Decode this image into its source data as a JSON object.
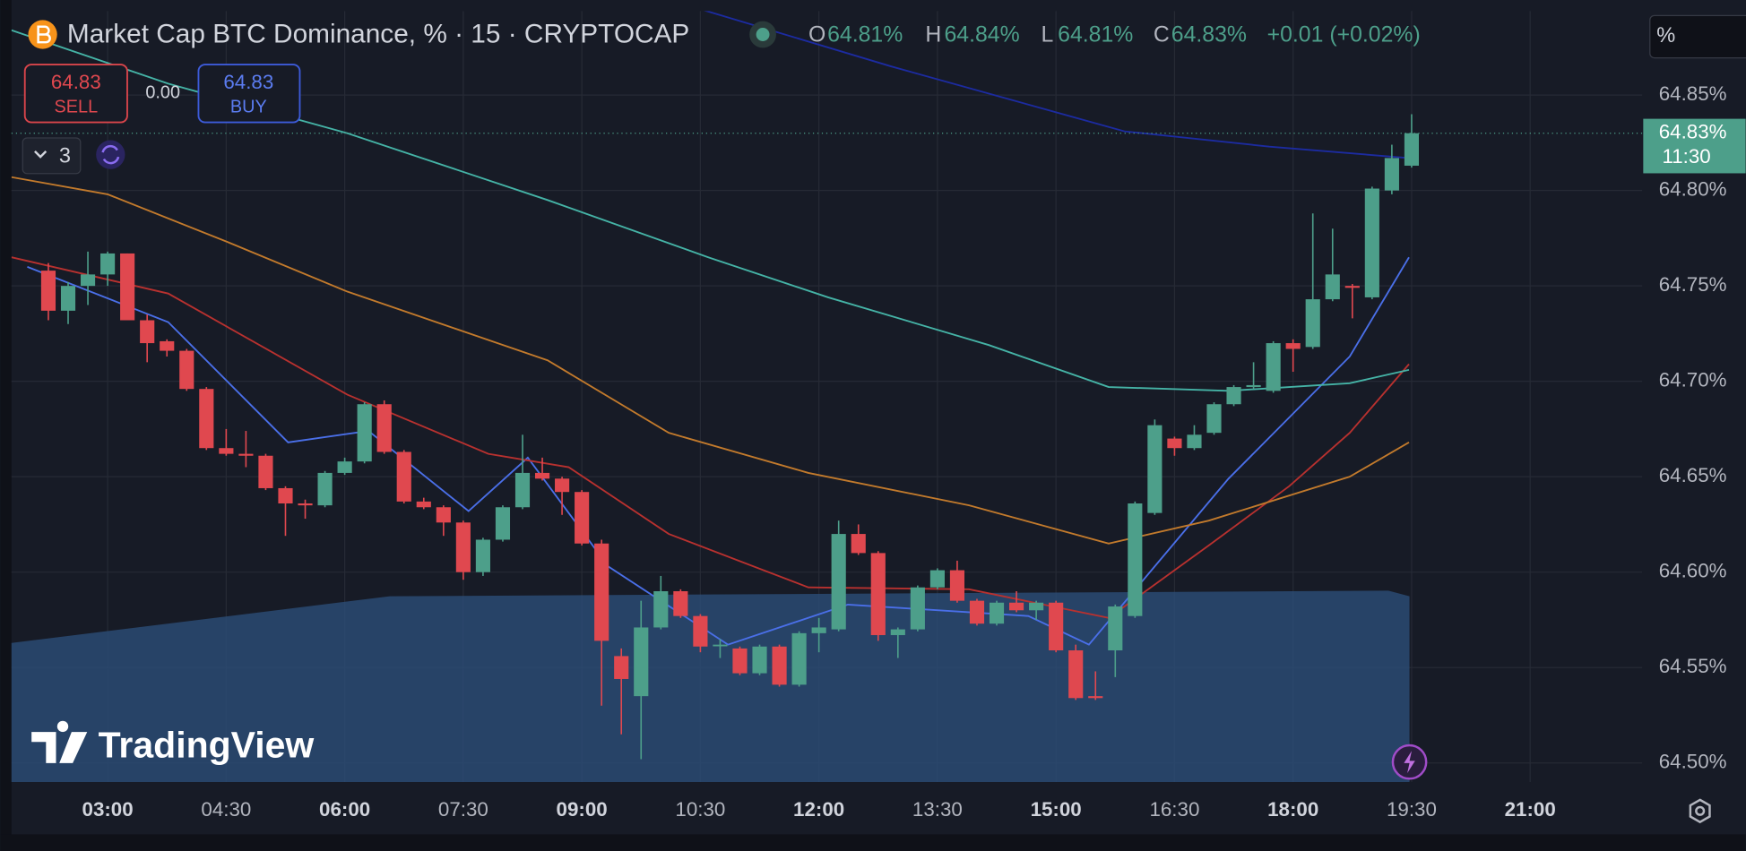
{
  "chart_data": {
    "type": "candlestick",
    "title": "Market Cap BTC Dominance, % · 15 · CRYPTOCAP",
    "ohlc_legend": {
      "o_label": "O",
      "o": "64.81%",
      "h_label": "H",
      "h": "64.84%",
      "l_label": "L",
      "l": "64.81%",
      "c_label": "C",
      "c": "64.83%",
      "change": "+0.01 (+0.02%)"
    },
    "up_color": "#4d9f8a",
    "down_color": "#e0484f",
    "xlim": [
      107,
      1345
    ],
    "ylim": [
      64.49,
      64.894
    ],
    "xticks": [
      {
        "value": 180,
        "label": "03:00",
        "major": true
      },
      {
        "value": 270,
        "label": "04:30",
        "major": false
      },
      {
        "value": 360,
        "label": "06:00",
        "major": true
      },
      {
        "value": 450,
        "label": "07:30",
        "major": false
      },
      {
        "value": 540,
        "label": "09:00",
        "major": true
      },
      {
        "value": 630,
        "label": "10:30",
        "major": false
      },
      {
        "value": 720,
        "label": "12:00",
        "major": true
      },
      {
        "value": 810,
        "label": "13:30",
        "major": false
      },
      {
        "value": 900,
        "label": "15:00",
        "major": true
      },
      {
        "value": 990,
        "label": "16:30",
        "major": false
      },
      {
        "value": 1080,
        "label": "18:00",
        "major": true
      },
      {
        "value": 1170,
        "label": "19:30",
        "major": false
      },
      {
        "value": 1260,
        "label": "21:00",
        "major": true
      }
    ],
    "yticks": [
      {
        "value": 64.5,
        "label": "64.50%"
      },
      {
        "value": 64.55,
        "label": "64.55%"
      },
      {
        "value": 64.6,
        "label": "64.60%"
      },
      {
        "value": 64.65,
        "label": "64.65%"
      },
      {
        "value": 64.7,
        "label": "64.70%"
      },
      {
        "value": 64.75,
        "label": "64.75%"
      },
      {
        "value": 64.8,
        "label": "64.80%"
      },
      {
        "value": 64.85,
        "label": "64.85%"
      }
    ],
    "grid": true,
    "x": [
      135,
      150,
      165,
      180,
      195,
      210,
      225,
      240,
      255,
      270,
      285,
      300,
      315,
      330,
      345,
      360,
      375,
      390,
      405,
      420,
      435,
      450,
      465,
      480,
      495,
      510,
      525,
      540,
      555,
      570,
      585,
      600,
      615,
      630,
      645,
      660,
      675,
      690,
      705,
      720,
      735,
      750,
      765,
      780,
      795,
      810,
      825,
      840,
      855,
      870,
      885,
      900,
      915,
      930,
      945,
      960,
      975,
      990,
      1005,
      1020,
      1035,
      1050,
      1065,
      1080,
      1095,
      1110,
      1125,
      1140,
      1155,
      1170
    ],
    "open": [
      64.758,
      64.737,
      64.75,
      64.756,
      64.767,
      64.732,
      64.721,
      64.716,
      64.696,
      64.665,
      64.662,
      64.661,
      64.644,
      64.636,
      64.635,
      64.652,
      64.658,
      64.688,
      64.663,
      64.637,
      64.634,
      64.626,
      64.6,
      64.617,
      64.634,
      64.652,
      64.649,
      64.642,
      64.615,
      64.556,
      64.535,
      64.571,
      64.59,
      64.577,
      64.562,
      64.56,
      64.547,
      64.561,
      64.541,
      64.568,
      64.57,
      64.62,
      64.61,
      64.567,
      64.57,
      64.592,
      64.601,
      64.585,
      64.573,
      64.584,
      64.58,
      64.584,
      64.559,
      64.535,
      64.559,
      64.577,
      64.631,
      64.67,
      64.665,
      64.673,
      64.688,
      64.697,
      64.695,
      64.72,
      64.718,
      64.743,
      64.75,
      64.744,
      64.8,
      64.813
    ],
    "high": [
      64.762,
      64.752,
      64.768,
      64.768,
      64.767,
      64.735,
      64.722,
      64.717,
      64.697,
      64.675,
      64.674,
      64.662,
      64.645,
      64.638,
      64.653,
      64.66,
      64.689,
      64.69,
      64.664,
      64.639,
      64.635,
      64.627,
      64.618,
      64.635,
      64.672,
      64.66,
      64.65,
      64.643,
      64.617,
      64.56,
      64.585,
      64.598,
      64.591,
      64.578,
      64.565,
      64.561,
      64.562,
      64.562,
      64.569,
      64.576,
      64.627,
      64.625,
      64.611,
      64.571,
      64.593,
      64.602,
      64.606,
      64.586,
      64.585,
      64.59,
      64.585,
      64.585,
      64.562,
      64.548,
      64.583,
      64.637,
      64.68,
      64.671,
      64.677,
      64.689,
      64.698,
      64.71,
      64.721,
      64.722,
      64.788,
      64.78,
      64.751,
      64.802,
      64.824,
      64.84
    ],
    "low": [
      64.732,
      64.73,
      64.74,
      64.75,
      64.732,
      64.71,
      64.713,
      64.695,
      64.664,
      64.661,
      64.655,
      64.643,
      64.619,
      64.628,
      64.634,
      64.651,
      64.657,
      64.662,
      64.636,
      64.633,
      64.619,
      64.596,
      64.598,
      64.616,
      64.633,
      64.648,
      64.63,
      64.614,
      64.53,
      64.515,
      64.502,
      64.57,
      64.576,
      64.558,
      64.555,
      64.546,
      64.546,
      64.54,
      64.54,
      64.558,
      64.569,
      64.609,
      64.564,
      64.555,
      64.569,
      64.591,
      64.584,
      64.572,
      64.572,
      64.579,
      64.575,
      64.558,
      64.533,
      64.533,
      64.545,
      64.576,
      64.63,
      64.661,
      64.664,
      64.672,
      64.687,
      64.696,
      64.694,
      64.705,
      64.717,
      64.742,
      64.733,
      64.743,
      64.798,
      64.812
    ],
    "close": [
      64.737,
      64.75,
      64.756,
      64.767,
      64.732,
      64.72,
      64.716,
      64.696,
      64.665,
      64.662,
      64.661,
      64.644,
      64.636,
      64.635,
      64.652,
      64.658,
      64.688,
      64.663,
      64.637,
      64.634,
      64.626,
      64.6,
      64.617,
      64.634,
      64.652,
      64.649,
      64.642,
      64.615,
      64.564,
      64.544,
      64.571,
      64.59,
      64.577,
      64.561,
      64.562,
      64.547,
      64.561,
      64.541,
      64.568,
      64.571,
      64.62,
      64.61,
      64.567,
      64.57,
      64.592,
      64.601,
      64.585,
      64.573,
      64.584,
      64.58,
      64.584,
      64.559,
      64.534,
      64.534,
      64.582,
      64.636,
      64.677,
      64.665,
      64.672,
      64.688,
      64.697,
      64.698,
      64.72,
      64.717,
      64.743,
      64.756,
      64.749,
      64.801,
      64.817,
      64.83
    ],
    "lines": [
      {
        "color": "#4a6fe8",
        "x": [
          119,
          226,
          317,
          378,
          454,
          499,
          560,
          651,
          742,
          879,
          925,
          1031,
          1123,
          1168
        ],
        "values": [
          64.76,
          64.731,
          64.668,
          64.674,
          64.632,
          64.66,
          64.603,
          64.562,
          64.583,
          64.577,
          64.562,
          64.649,
          64.713,
          64.765
        ]
      },
      {
        "color": "#b8312f",
        "x": [
          107,
          226,
          362,
          469,
          530,
          606,
          712,
          834,
          940,
          1016,
          1077,
          1123,
          1168
        ],
        "values": [
          64.765,
          64.746,
          64.693,
          64.662,
          64.655,
          64.62,
          64.592,
          64.591,
          64.576,
          64.614,
          64.645,
          64.673,
          64.709
        ]
      },
      {
        "color": "#c27a2c",
        "x": [
          107,
          180,
          271,
          362,
          514,
          606,
          712,
          834,
          940,
          1016,
          1123,
          1168
        ],
        "values": [
          64.807,
          64.798,
          64.773,
          64.747,
          64.711,
          64.673,
          64.652,
          64.635,
          64.615,
          64.627,
          64.65,
          64.668
        ]
      },
      {
        "color": "#45b3a6",
        "x": [
          107,
          226,
          362,
          514,
          636,
          727,
          849,
          940,
          1031,
          1123,
          1168
        ],
        "values": [
          64.884,
          64.856,
          64.83,
          64.795,
          64.765,
          64.744,
          64.719,
          64.697,
          64.695,
          64.699,
          64.706
        ]
      },
      {
        "color": "#1c2ba0",
        "x": [
          606,
          775,
          952,
          1062,
          1168
        ],
        "values": [
          64.9,
          64.865,
          64.831,
          64.823,
          64.817
        ]
      }
    ],
    "last_price": {
      "value": 64.83,
      "label": "64.83%",
      "countdown": "11:30"
    }
  },
  "trade_panel": {
    "sell_price": "64.83",
    "sell": "SELL",
    "spread": "0.00",
    "buy_price": "64.83",
    "buy": "BUY"
  },
  "indicators": {
    "count": "3"
  },
  "scale_mode": "%",
  "logo": "TradingView"
}
